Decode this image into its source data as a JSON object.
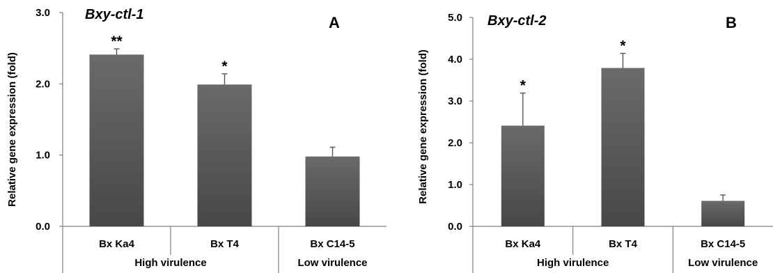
{
  "chart_data": [
    {
      "type": "bar",
      "panel": "A",
      "title": "Bxy-ctl-1",
      "ylabel": "Relative gene expression (fold)",
      "ylim": [
        0,
        3.0
      ],
      "yticks": [
        "0.0",
        "1.0",
        "2.0",
        "3.0"
      ],
      "yticks_values": [
        0,
        1,
        2,
        3
      ],
      "categories": [
        "Bx Ka4",
        "Bx T4",
        "Bx C14-5"
      ],
      "values": [
        2.41,
        1.99,
        0.98
      ],
      "errors": [
        0.08,
        0.15,
        0.13
      ],
      "significance": [
        "**",
        "*",
        ""
      ],
      "groups": [
        {
          "label": "High virulence",
          "categories": [
            "Bx Ka4",
            "Bx T4"
          ]
        },
        {
          "label": "Low virulence",
          "categories": [
            "Bx C14-5"
          ]
        }
      ],
      "bar_color": "#5a5a5a"
    },
    {
      "type": "bar",
      "panel": "B",
      "title": "Bxy-ctl-2",
      "ylabel": "Relative gene expression (fold)",
      "ylim": [
        0,
        5.0
      ],
      "yticks": [
        "0.0",
        "1.0",
        "2.0",
        "3.0",
        "4.0",
        "5.0"
      ],
      "yticks_values": [
        0,
        1,
        2,
        3,
        4,
        5
      ],
      "categories": [
        "Bx Ka4",
        "Bx T4",
        "Bx C14-5"
      ],
      "values": [
        2.41,
        3.79,
        0.61
      ],
      "errors": [
        0.78,
        0.35,
        0.14
      ],
      "significance": [
        "*",
        "*",
        ""
      ],
      "groups": [
        {
          "label": "High virulence",
          "categories": [
            "Bx Ka4",
            "Bx T4"
          ]
        },
        {
          "label": "Low virulence",
          "categories": [
            "Bx C14-5"
          ]
        }
      ],
      "bar_color": "#5a5a5a"
    }
  ]
}
